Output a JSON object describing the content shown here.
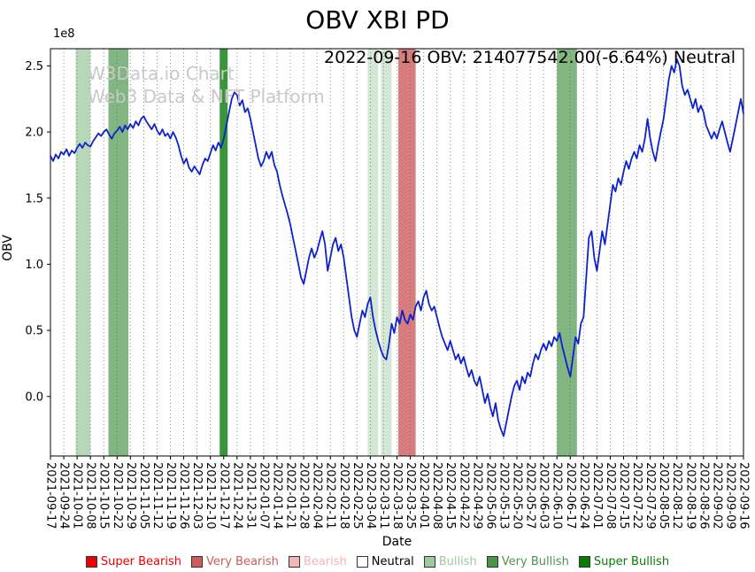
{
  "watermark": {
    "line1": "W3Data.io Chart",
    "line2": "Web3 Data & NFT Platform"
  },
  "latest": {
    "date": "2022-09-16",
    "obv": "214077542.00",
    "change_pct": "-6.64%",
    "signal": "Neutral"
  },
  "legend": {
    "items": [
      {
        "label": "Super Bearish",
        "color": "#ee0000",
        "text_color": "#ee0000"
      },
      {
        "label": "Very Bearish",
        "color": "#cd5c5c",
        "text_color": "#cd5c5c"
      },
      {
        "label": "Bearish",
        "color": "#f4b6b6",
        "text_color": "#f4b6b6"
      },
      {
        "label": "Neutral",
        "color": "#ffffff",
        "text_color": "#000000"
      },
      {
        "label": "Bullish",
        "color": "#9fc99f",
        "text_color": "#9fc99f"
      },
      {
        "label": "Very Bullish",
        "color": "#4c964c",
        "text_color": "#4c964c"
      },
      {
        "label": "Super Bullish",
        "color": "#077d07",
        "text_color": "#077d07"
      }
    ]
  },
  "chart_data": {
    "type": "line",
    "title": "OBV XBI PD",
    "annotation": "2022-09-16 OBV: 214077542.00(-6.64%) Neutral",
    "xlabel": "Date",
    "ylabel": "OBV",
    "y_offset_label": "1e8",
    "y_ticks": [
      0.0,
      0.5,
      1.0,
      1.5,
      2.0,
      2.5
    ],
    "ylim": [
      -0.45,
      2.63
    ],
    "grid": "vertical-dotted",
    "legend_position": "bottom",
    "x_tick_labels": [
      "2021-09-17",
      "2021-09-24",
      "2021-10-01",
      "2021-10-08",
      "2021-10-15",
      "2021-10-22",
      "2021-10-29",
      "2021-11-05",
      "2021-11-12",
      "2021-11-19",
      "2021-11-26",
      "2021-12-03",
      "2021-12-10",
      "2021-12-17",
      "2021-12-24",
      "2021-12-31",
      "2022-01-07",
      "2022-01-14",
      "2022-01-21",
      "2022-01-28",
      "2022-02-04",
      "2022-02-11",
      "2022-02-18",
      "2022-02-25",
      "2022-03-04",
      "2022-03-11",
      "2022-03-18",
      "2022-03-25",
      "2022-04-01",
      "2022-04-08",
      "2022-04-15",
      "2022-04-22",
      "2022-04-29",
      "2022-05-06",
      "2022-05-13",
      "2022-05-20",
      "2022-05-27",
      "2022-06-03",
      "2022-06-10",
      "2022-06-17",
      "2022-06-24",
      "2022-07-01",
      "2022-07-08",
      "2022-07-15",
      "2022-07-22",
      "2022-07-29",
      "2022-08-05",
      "2022-08-12",
      "2022-08-19",
      "2022-08-26",
      "2022-09-02",
      "2022-09-09",
      "2022-09-16"
    ],
    "bands": [
      {
        "label": "Bullish",
        "x0_week": 1.9,
        "x1_week": 3.0,
        "color": "#9fc99f",
        "opacity": 0.75
      },
      {
        "label": "Very Bullish",
        "x0_week": 4.35,
        "x1_week": 5.85,
        "color": "#4c964c",
        "opacity": 0.7
      },
      {
        "label": "Super Bullish",
        "x0_week": 12.7,
        "x1_week": 13.3,
        "color": "#077d07",
        "opacity": 0.8
      },
      {
        "label": "Bullish",
        "x0_week": 23.8,
        "x1_week": 24.6,
        "color": "#9fc99f",
        "opacity": 0.45
      },
      {
        "label": "Bullish",
        "x0_week": 24.8,
        "x1_week": 25.6,
        "color": "#9fc99f",
        "opacity": 0.45
      },
      {
        "label": "Very Bearish",
        "x0_week": 26.1,
        "x1_week": 27.4,
        "color": "#cd5c5c",
        "opacity": 0.8
      },
      {
        "label": "Very Bullish",
        "x0_week": 38.0,
        "x1_week": 39.5,
        "color": "#4c964c",
        "opacity": 0.7
      }
    ],
    "series": [
      {
        "name": "OBV",
        "color": "#0d22cc",
        "x_start_week": 0,
        "x_step_week": 0.2,
        "value_scale": 100000000.0,
        "values_1e8": [
          1.82,
          1.78,
          1.83,
          1.8,
          1.85,
          1.83,
          1.87,
          1.82,
          1.86,
          1.84,
          1.88,
          1.91,
          1.88,
          1.92,
          1.9,
          1.89,
          1.93,
          1.96,
          1.99,
          1.97,
          2.0,
          2.02,
          1.98,
          1.95,
          1.99,
          2.01,
          2.04,
          2.0,
          2.05,
          2.02,
          2.06,
          2.03,
          2.08,
          2.05,
          2.1,
          2.12,
          2.08,
          2.05,
          2.02,
          2.06,
          2.01,
          1.98,
          2.02,
          1.97,
          1.99,
          1.95,
          2.0,
          1.96,
          1.9,
          1.82,
          1.76,
          1.8,
          1.73,
          1.7,
          1.74,
          1.71,
          1.68,
          1.75,
          1.8,
          1.78,
          1.84,
          1.9,
          1.86,
          1.92,
          1.88,
          1.95,
          2.05,
          2.15,
          2.25,
          2.3,
          2.28,
          2.2,
          2.24,
          2.15,
          2.18,
          2.1,
          2.0,
          1.9,
          1.8,
          1.74,
          1.78,
          1.85,
          1.8,
          1.85,
          1.75,
          1.7,
          1.6,
          1.52,
          1.45,
          1.38,
          1.3,
          1.2,
          1.1,
          1.0,
          0.9,
          0.85,
          0.95,
          1.05,
          1.12,
          1.05,
          1.1,
          1.18,
          1.25,
          1.15,
          0.95,
          1.05,
          1.15,
          1.2,
          1.1,
          1.15,
          1.05,
          0.9,
          0.75,
          0.6,
          0.5,
          0.45,
          0.55,
          0.65,
          0.6,
          0.7,
          0.75,
          0.6,
          0.5,
          0.42,
          0.35,
          0.3,
          0.28,
          0.4,
          0.55,
          0.48,
          0.6,
          0.55,
          0.65,
          0.58,
          0.55,
          0.62,
          0.58,
          0.68,
          0.72,
          0.65,
          0.75,
          0.8,
          0.7,
          0.65,
          0.68,
          0.6,
          0.52,
          0.45,
          0.4,
          0.35,
          0.42,
          0.35,
          0.28,
          0.32,
          0.25,
          0.3,
          0.22,
          0.15,
          0.2,
          0.12,
          0.08,
          0.15,
          0.05,
          -0.05,
          0.02,
          -0.08,
          -0.15,
          -0.05,
          -0.18,
          -0.25,
          -0.3,
          -0.2,
          -0.1,
          0.0,
          0.08,
          0.12,
          0.05,
          0.15,
          0.1,
          0.18,
          0.15,
          0.25,
          0.32,
          0.28,
          0.35,
          0.4,
          0.35,
          0.42,
          0.38,
          0.45,
          0.42,
          0.48,
          0.38,
          0.3,
          0.22,
          0.15,
          0.3,
          0.45,
          0.4,
          0.55,
          0.6,
          0.9,
          1.2,
          1.25,
          1.05,
          0.95,
          1.1,
          1.25,
          1.15,
          1.3,
          1.45,
          1.6,
          1.55,
          1.65,
          1.6,
          1.7,
          1.78,
          1.72,
          1.8,
          1.85,
          1.8,
          1.9,
          1.85,
          1.95,
          2.1,
          1.95,
          1.85,
          1.78,
          1.9,
          2.0,
          2.1,
          2.25,
          2.4,
          2.5,
          2.45,
          2.55,
          2.5,
          2.35,
          2.28,
          2.32,
          2.25,
          2.18,
          2.25,
          2.15,
          2.2,
          2.15,
          2.05,
          2.0,
          1.95,
          2.0,
          1.95,
          2.02,
          2.08,
          2.0,
          1.92,
          1.85,
          1.95,
          2.05,
          2.15,
          2.25,
          2.14
        ]
      }
    ]
  }
}
